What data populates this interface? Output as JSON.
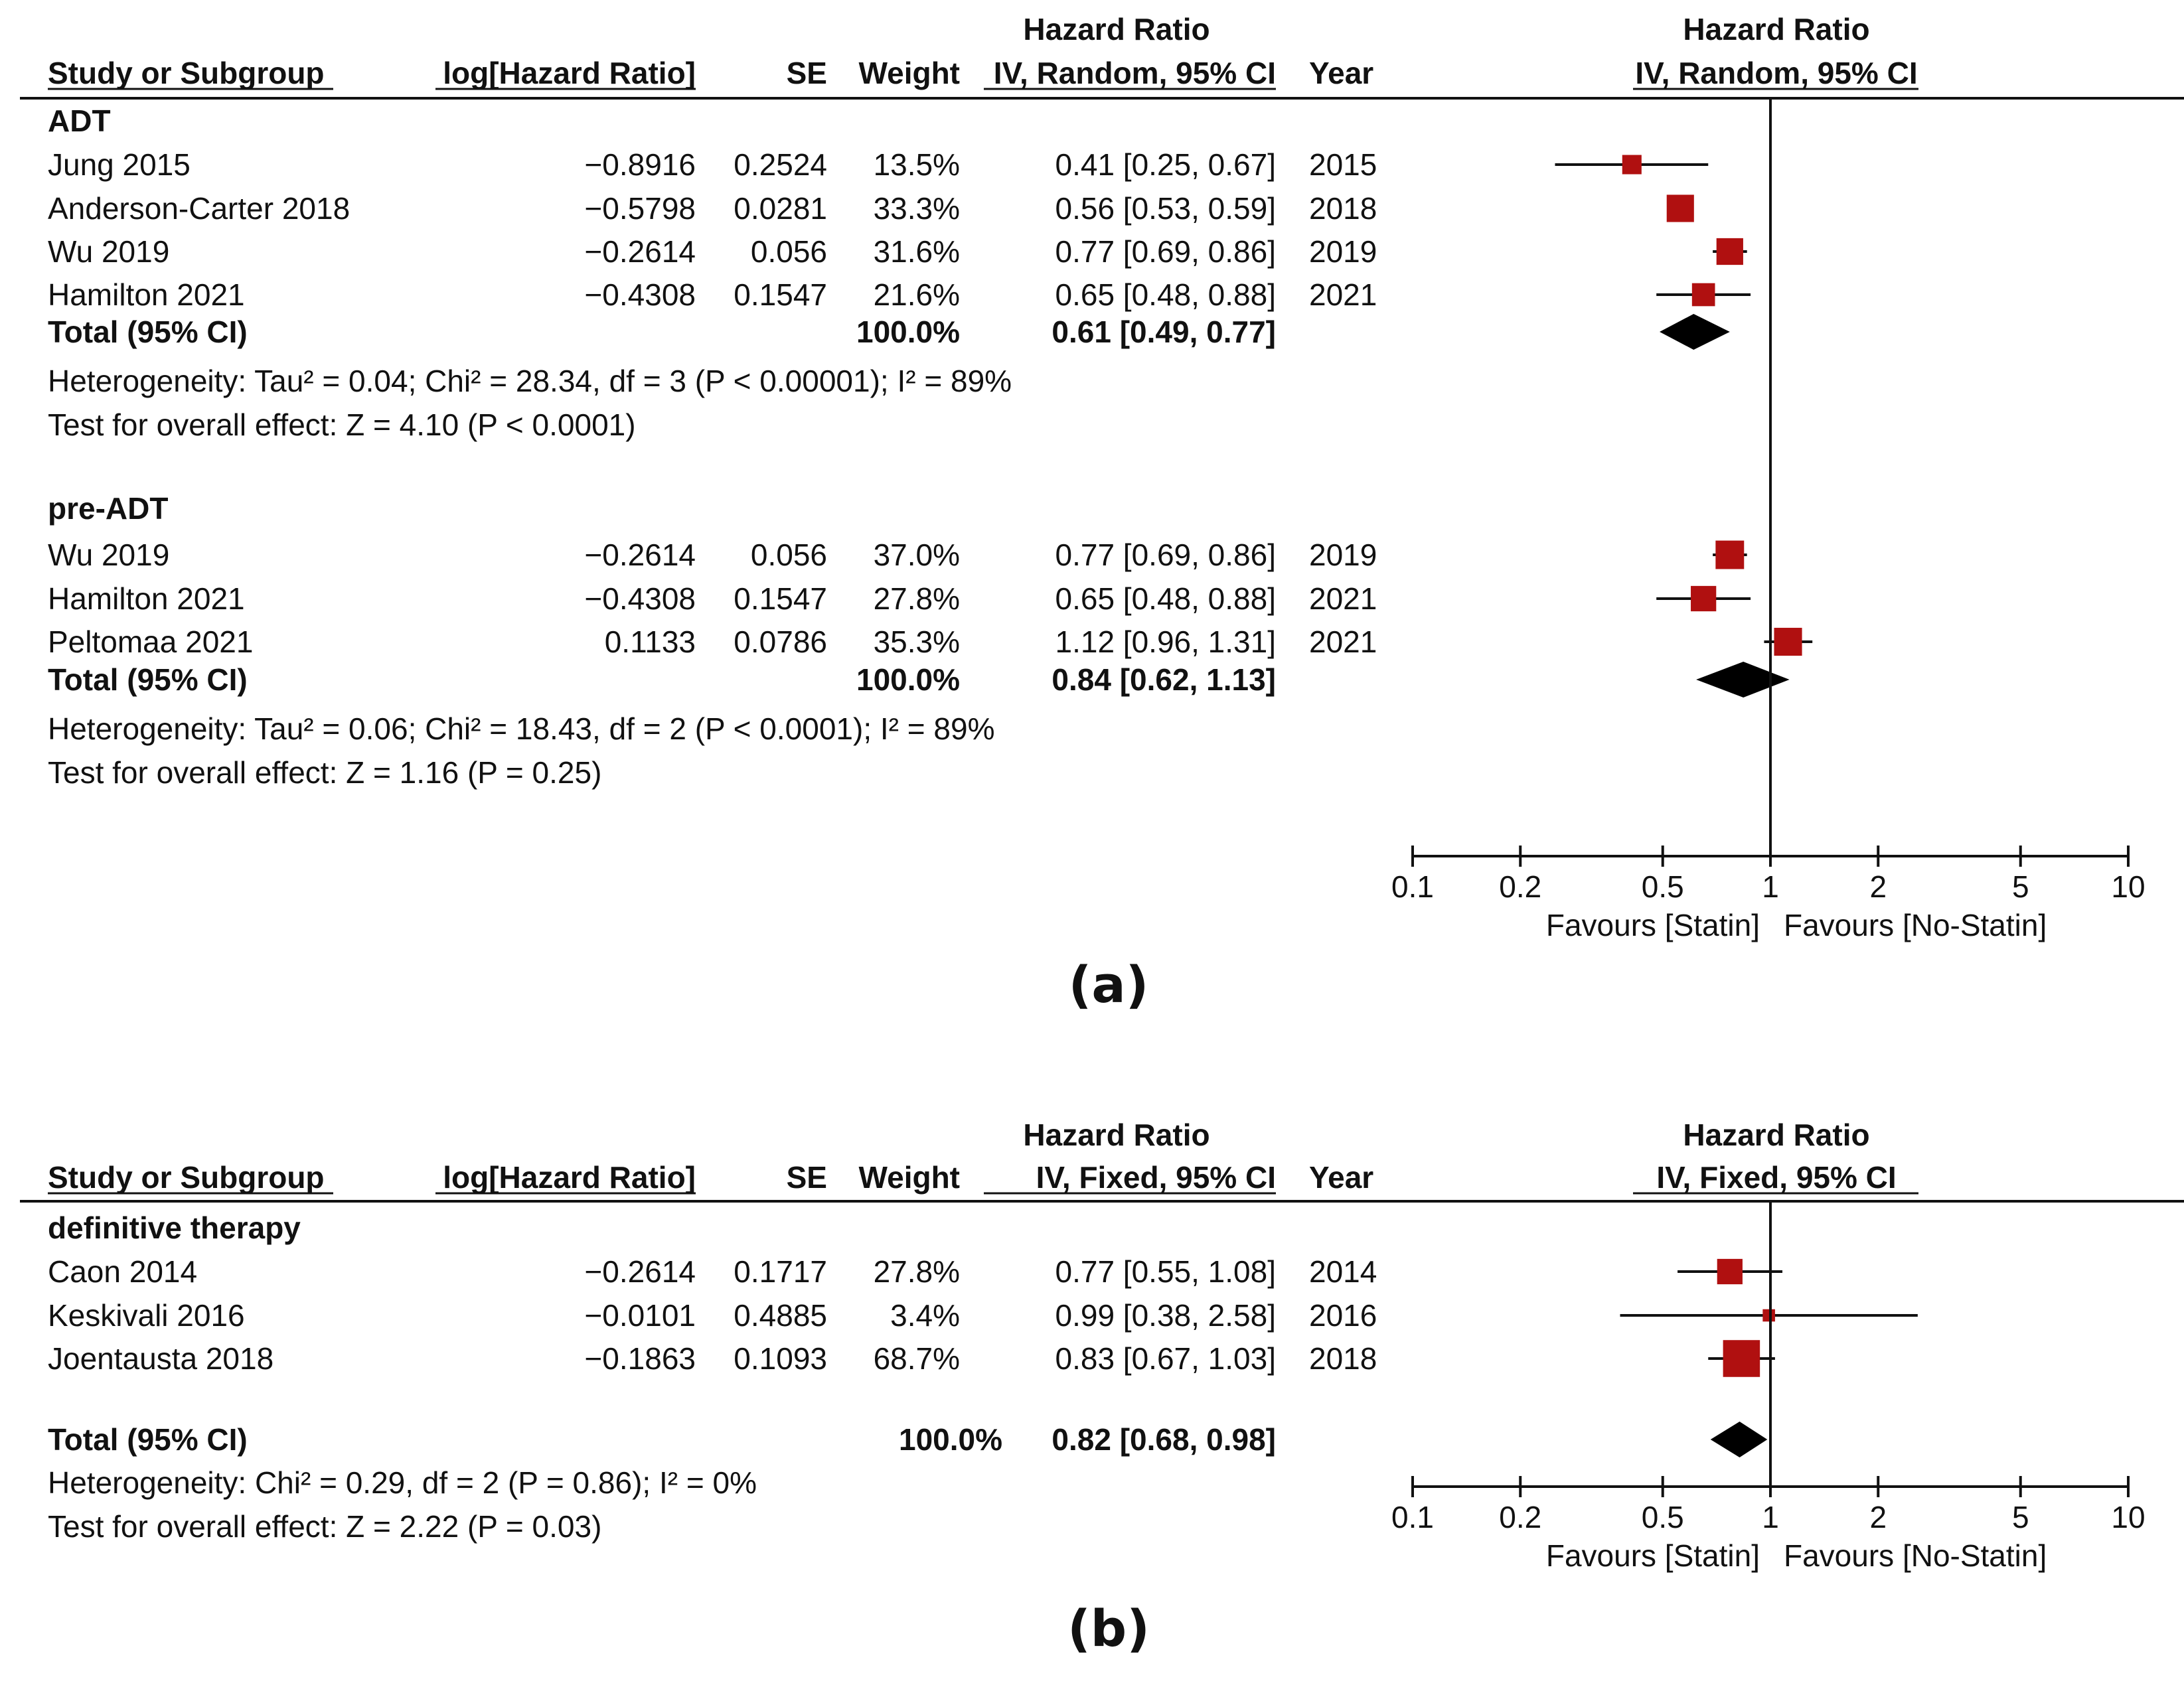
{
  "chart_data": [
    {
      "type": "forest",
      "panel_label": "(a)",
      "scale": "log",
      "xlim": [
        0.1,
        10
      ],
      "ticks": [
        "0.1",
        "0.2",
        "0.5",
        "1",
        "2",
        "5",
        "10"
      ],
      "tick_values": [
        0.1,
        0.2,
        0.5,
        1,
        2,
        5,
        10
      ],
      "xlabel_left": "Favours [Statin]",
      "xlabel_right": "Favours [No-Statin]",
      "header": {
        "study": "Study or Subgroup",
        "loghr": "log[Hazard Ratio]",
        "se": "SE",
        "weight": "Weight",
        "ci_top": "Hazard Ratio",
        "ci_bottom": "IV, Random, 95% CI",
        "year": "Year",
        "plot_top": "Hazard Ratio",
        "plot_bottom": "IV, Random, 95% CI"
      },
      "groups": [
        {
          "name": "ADT",
          "studies": [
            {
              "study": "Jung 2015",
              "loghr": "−0.8916",
              "se": "0.2524",
              "weight": "13.5%",
              "ci_text": "0.41 [0.25, 0.67]",
              "year": "2015",
              "hr": 0.41,
              "lo": 0.25,
              "hi": 0.67,
              "w": 13.5
            },
            {
              "study": "Anderson-Carter 2018",
              "loghr": "−0.5798",
              "se": "0.0281",
              "weight": "33.3%",
              "ci_text": "0.56 [0.53, 0.59]",
              "year": "2018",
              "hr": 0.56,
              "lo": 0.53,
              "hi": 0.59,
              "w": 33.3
            },
            {
              "study": "Wu 2019",
              "loghr": "−0.2614",
              "se": "0.056",
              "weight": "31.6%",
              "ci_text": "0.77 [0.69, 0.86]",
              "year": "2019",
              "hr": 0.77,
              "lo": 0.69,
              "hi": 0.86,
              "w": 31.6
            },
            {
              "study": "Hamilton 2021",
              "loghr": "−0.4308",
              "se": "0.1547",
              "weight": "21.6%",
              "ci_text": "0.65 [0.48, 0.88]",
              "year": "2021",
              "hr": 0.65,
              "lo": 0.48,
              "hi": 0.88,
              "w": 21.6
            }
          ],
          "total": {
            "label": "Total (95% CI)",
            "weight": "100.0%",
            "ci_text": "0.61 [0.49, 0.77]",
            "hr": 0.61,
            "lo": 0.49,
            "hi": 0.77
          },
          "heterogeneity": "Heterogeneity: Tau² = 0.04; Chi² = 28.34, df = 3 (P < 0.00001); I² = 89%",
          "overall": "Test for overall effect: Z = 4.10 (P < 0.0001)"
        },
        {
          "name": "pre-ADT",
          "studies": [
            {
              "study": "Wu 2019",
              "loghr": "−0.2614",
              "se": "0.056",
              "weight": "37.0%",
              "ci_text": "0.77 [0.69, 0.86]",
              "year": "2019",
              "hr": 0.77,
              "lo": 0.69,
              "hi": 0.86,
              "w": 37.0
            },
            {
              "study": "Hamilton 2021",
              "loghr": "−0.4308",
              "se": "0.1547",
              "weight": "27.8%",
              "ci_text": "0.65 [0.48, 0.88]",
              "year": "2021",
              "hr": 0.65,
              "lo": 0.48,
              "hi": 0.88,
              "w": 27.8
            },
            {
              "study": "Peltomaa 2021",
              "loghr": "0.1133",
              "se": "0.0786",
              "weight": "35.3%",
              "ci_text": "1.12 [0.96, 1.31]",
              "year": "2021",
              "hr": 1.12,
              "lo": 0.96,
              "hi": 1.31,
              "w": 35.3
            }
          ],
          "total": {
            "label": "Total (95% CI)",
            "weight": "100.0%",
            "ci_text": "0.84 [0.62, 1.13]",
            "hr": 0.84,
            "lo": 0.62,
            "hi": 1.13
          },
          "heterogeneity": "Heterogeneity: Tau² = 0.06; Chi² = 18.43, df = 2 (P < 0.0001); I² = 89%",
          "overall": "Test for overall effect: Z = 1.16 (P = 0.25)"
        }
      ]
    },
    {
      "type": "forest",
      "panel_label": "(b)",
      "scale": "log",
      "xlim": [
        0.1,
        10
      ],
      "ticks": [
        "0.1",
        "0.2",
        "0.5",
        "1",
        "2",
        "5",
        "10"
      ],
      "tick_values": [
        0.1,
        0.2,
        0.5,
        1,
        2,
        5,
        10
      ],
      "xlabel_left": "Favours [Statin]",
      "xlabel_right": "Favours [No-Statin]",
      "header": {
        "study": "Study or Subgroup",
        "loghr": "log[Hazard Ratio]",
        "se": "SE",
        "weight": "Weight",
        "ci_top": "Hazard Ratio",
        "ci_bottom": "IV, Fixed, 95% CI",
        "year": "Year",
        "plot_top": "Hazard Ratio",
        "plot_bottom": "IV, Fixed, 95% CI"
      },
      "groups": [
        {
          "name": "definitive therapy",
          "studies": [
            {
              "study": "Caon 2014",
              "loghr": "−0.2614",
              "se": "0.1717",
              "weight": "27.8%",
              "ci_text": "0.77 [0.55, 1.08]",
              "year": "2014",
              "hr": 0.77,
              "lo": 0.55,
              "hi": 1.08,
              "w": 27.8
            },
            {
              "study": "Keskivali 2016",
              "loghr": "−0.0101",
              "se": "0.4885",
              "weight": "3.4%",
              "ci_text": "0.99 [0.38, 2.58]",
              "year": "2016",
              "hr": 0.99,
              "lo": 0.38,
              "hi": 2.58,
              "w": 3.4
            },
            {
              "study": "Joentausta 2018",
              "loghr": "−0.1863",
              "se": "0.1093",
              "weight": "68.7%",
              "ci_text": "0.83 [0.67, 1.03]",
              "year": "2018",
              "hr": 0.83,
              "lo": 0.67,
              "hi": 1.03,
              "w": 68.7
            }
          ],
          "total": {
            "label": "Total (95% CI)",
            "weight": "100.0%",
            "ci_text": "0.82 [0.68, 0.98]",
            "hr": 0.82,
            "lo": 0.68,
            "hi": 0.98
          },
          "heterogeneity": "Heterogeneity: Chi² = 0.29, df = 2 (P = 0.86); I² = 0%",
          "overall": "Test for overall effect: Z = 2.22 (P = 0.03)"
        }
      ]
    }
  ]
}
